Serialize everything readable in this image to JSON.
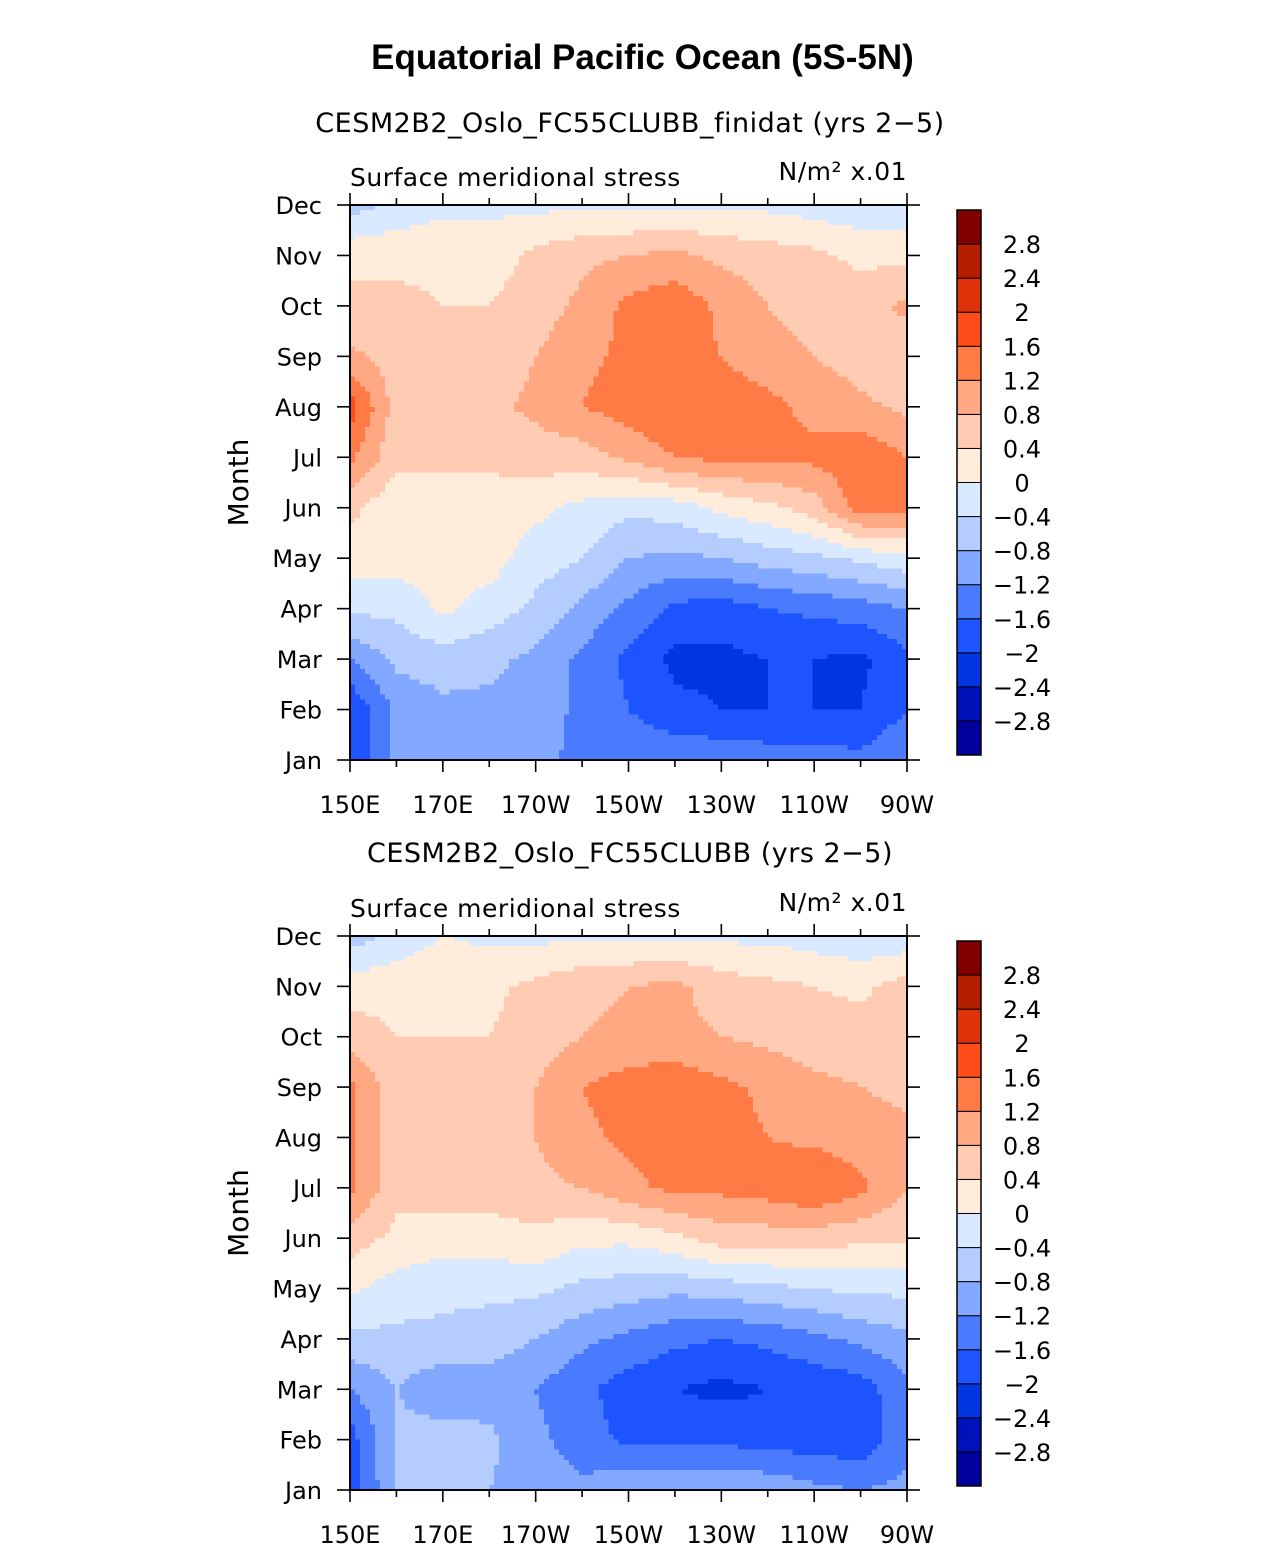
{
  "main_title": "Equatorial Pacific Ocean (5S-5N)",
  "colors": {
    "palette": [
      "#00009A",
      "#0013B8",
      "#0036E0",
      "#1D54FF",
      "#4A7BFF",
      "#82A8FF",
      "#B5CCFF",
      "#D9E9FF",
      "#FFECDB",
      "#FFCCB3",
      "#FFA882",
      "#FF7A45",
      "#FF4D19",
      "#E0320A",
      "#B31F00",
      "#800000"
    ]
  },
  "chart_data": [
    {
      "type": "heatmap",
      "title": "CESM2B2_Oslo_FC55CLUBB_finidat (yrs 2−5)",
      "left_string": "Surface meridional stress",
      "right_string": "N/m² x.01",
      "units": "N/m2",
      "scale_factor": "x.01",
      "ylabel": "Month",
      "xlabel": "",
      "x_ticklabels": [
        "150E",
        "170E",
        "170W",
        "150W",
        "130W",
        "110W",
        "90W"
      ],
      "y_ticklabels": [
        "Jan",
        "Feb",
        "Mar",
        "Apr",
        "May",
        "Jun",
        "Jul",
        "Aug",
        "Sep",
        "Oct",
        "Nov",
        "Dec"
      ],
      "xlim": [
        150,
        270
      ],
      "colorbar_levels": [
        -2.8,
        -2.4,
        -2,
        -1.6,
        -1.2,
        -0.8,
        -0.4,
        0,
        0.4,
        0.8,
        1.2,
        1.6,
        2,
        2.4,
        2.8
      ],
      "colorbar_labels": [
        "2.8",
        "2.4",
        "2",
        "1.6",
        "1.2",
        "0.8",
        "0.4",
        "0",
        "−0.4",
        "−0.8",
        "−1.2",
        "−1.6",
        "−2",
        "−2.4",
        "−2.8"
      ],
      "x": [
        150,
        160,
        170,
        180,
        190,
        200,
        210,
        220,
        230,
        240,
        250,
        260,
        270
      ],
      "months": [
        "Jan",
        "Feb",
        "Mar",
        "Apr",
        "May",
        "Jun",
        "Jul",
        "Aug",
        "Sep",
        "Oct",
        "Nov",
        "Dec"
      ],
      "values": [
        [
          -2.0,
          -1.0,
          -0.9,
          -1.1,
          -1.1,
          -1.3,
          -1.3,
          -1.3,
          -1.3,
          -1.4,
          -1.4,
          -1.5,
          -1.2
        ],
        [
          -2.0,
          -1.1,
          -0.9,
          -0.9,
          -1.0,
          -1.3,
          -1.6,
          -1.9,
          -2.0,
          -2.0,
          -2.0,
          -2.0,
          -1.6
        ],
        [
          -1.2,
          -0.7,
          -0.6,
          -0.7,
          -0.9,
          -1.3,
          -1.7,
          -2.1,
          -2.1,
          -2.0,
          -2.0,
          -2.1,
          -1.7
        ],
        [
          -0.3,
          -0.3,
          0.1,
          -0.2,
          -0.5,
          -0.9,
          -1.3,
          -1.7,
          -1.8,
          -1.6,
          -1.5,
          -1.4,
          -1.2
        ],
        [
          0.2,
          0.2,
          0.2,
          0.2,
          -0.2,
          -0.4,
          -0.8,
          -0.9,
          -0.8,
          -0.6,
          -0.5,
          -0.3,
          -0.1
        ],
        [
          0.5,
          0.1,
          0.2,
          0.2,
          0.1,
          -0.1,
          -0.3,
          -0.2,
          0.1,
          0.3,
          0.6,
          1.4,
          1.3
        ],
        [
          1.3,
          0.5,
          0.5,
          0.5,
          0.6,
          0.6,
          0.9,
          1.2,
          1.3,
          1.3,
          1.3,
          1.5,
          1.2
        ],
        [
          1.8,
          0.6,
          0.6,
          0.7,
          0.9,
          1.2,
          1.4,
          1.6,
          1.4,
          1.3,
          1.1,
          0.9,
          0.7
        ],
        [
          0.9,
          0.6,
          0.5,
          0.5,
          0.8,
          1.1,
          1.3,
          1.4,
          1.2,
          1.0,
          0.8,
          0.6,
          0.5
        ],
        [
          0.5,
          0.5,
          0.4,
          0.4,
          0.6,
          0.9,
          1.3,
          1.5,
          1.1,
          0.8,
          0.6,
          0.6,
          0.9
        ],
        [
          0.3,
          0.3,
          0.3,
          0.2,
          0.5,
          0.7,
          0.8,
          0.9,
          0.7,
          0.6,
          0.5,
          0.3,
          0.3
        ],
        [
          -0.6,
          -0.3,
          -0.1,
          -0.1,
          -0.1,
          -0.1,
          -0.1,
          -0.1,
          -0.1,
          -0.1,
          -0.2,
          -0.3,
          -0.3
        ]
      ]
    },
    {
      "type": "heatmap",
      "title": "CESM2B2_Oslo_FC55CLUBB (yrs 2−5)",
      "left_string": "Surface meridional stress",
      "right_string": "N/m² x.01",
      "units": "N/m2",
      "scale_factor": "x.01",
      "ylabel": "Month",
      "xlabel": "",
      "x_ticklabels": [
        "150E",
        "170E",
        "170W",
        "150W",
        "130W",
        "110W",
        "90W"
      ],
      "y_ticklabels": [
        "Jan",
        "Feb",
        "Mar",
        "Apr",
        "May",
        "Jun",
        "Jul",
        "Aug",
        "Sep",
        "Oct",
        "Nov",
        "Dec"
      ],
      "xlim": [
        150,
        270
      ],
      "colorbar_levels": [
        -2.8,
        -2.4,
        -2,
        -1.6,
        -1.2,
        -0.8,
        -0.4,
        0,
        0.4,
        0.8,
        1.2,
        1.6,
        2,
        2.4,
        2.8
      ],
      "colorbar_labels": [
        "2.8",
        "2.4",
        "2",
        "1.6",
        "1.2",
        "0.8",
        "0.4",
        "0",
        "−0.4",
        "−0.8",
        "−1.2",
        "−1.6",
        "−2",
        "−2.4",
        "−2.8"
      ],
      "x": [
        150,
        160,
        170,
        180,
        190,
        200,
        210,
        220,
        230,
        240,
        250,
        260,
        270
      ],
      "months": [
        "Jan",
        "Feb",
        "Mar",
        "Apr",
        "May",
        "Jun",
        "Jul",
        "Aug",
        "Sep",
        "Oct",
        "Nov",
        "Dec"
      ],
      "values": [
        [
          -1.8,
          -0.8,
          -0.7,
          -0.8,
          -1.0,
          -1.1,
          -0.9,
          -0.8,
          -0.8,
          -0.9,
          -1.1,
          -1.2,
          -1.1
        ],
        [
          -1.8,
          -0.7,
          -0.6,
          -0.7,
          -1.1,
          -1.4,
          -1.7,
          -1.7,
          -1.7,
          -1.8,
          -1.8,
          -1.9,
          -1.3
        ],
        [
          -1.2,
          -0.8,
          -1.1,
          -1.0,
          -1.2,
          -1.5,
          -1.8,
          -2.0,
          -2.1,
          -2.0,
          -1.9,
          -1.8,
          -1.3
        ],
        [
          -0.5,
          -0.5,
          -0.5,
          -0.6,
          -0.8,
          -1.1,
          -1.3,
          -1.5,
          -1.6,
          -1.5,
          -1.3,
          -1.1,
          -0.9
        ],
        [
          0.1,
          -0.2,
          -0.3,
          -0.3,
          -0.3,
          -0.5,
          -0.6,
          -0.7,
          -0.6,
          -0.5,
          -0.4,
          -0.3,
          -0.3
        ],
        [
          0.6,
          0.3,
          0.2,
          0.2,
          0.3,
          0.1,
          0.1,
          0.3,
          0.6,
          0.6,
          0.6,
          0.5,
          0.5
        ],
        [
          1.3,
          0.5,
          0.6,
          0.6,
          0.7,
          0.8,
          1.1,
          1.3,
          1.3,
          1.4,
          1.6,
          1.3,
          0.8
        ],
        [
          1.3,
          0.5,
          0.5,
          0.6,
          0.8,
          1.1,
          1.3,
          1.4,
          1.4,
          1.2,
          1.1,
          1.0,
          0.9
        ],
        [
          1.3,
          0.5,
          0.5,
          0.5,
          0.8,
          1.2,
          1.4,
          1.5,
          1.3,
          1.1,
          0.9,
          0.8,
          0.7
        ],
        [
          0.6,
          0.4,
          0.4,
          0.4,
          0.6,
          0.8,
          0.9,
          0.9,
          0.8,
          0.7,
          0.6,
          0.6,
          0.6
        ],
        [
          0.2,
          0.3,
          0.4,
          0.3,
          0.5,
          0.7,
          0.8,
          0.9,
          0.6,
          0.5,
          0.4,
          0.3,
          0.6
        ],
        [
          -0.6,
          -0.3,
          0.0,
          -0.1,
          -0.1,
          -0.1,
          -0.1,
          -0.1,
          -0.1,
          -0.1,
          -0.2,
          -0.3,
          -0.3
        ]
      ]
    }
  ]
}
